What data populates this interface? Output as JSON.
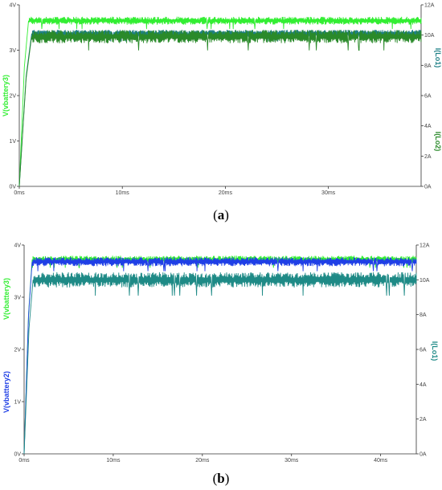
{
  "chart_data": [
    {
      "type": "line",
      "caption_letter": "a",
      "xlabel": "",
      "x_ticks": [
        "0ms",
        "10ms",
        "20ms",
        "30ms"
      ],
      "xlim": [
        0,
        39
      ],
      "left_axis": {
        "labels": [
          "V(vbattery3)"
        ],
        "label_colors": [
          "#33ee33"
        ],
        "ticks": [
          "0V",
          "1V",
          "2V",
          "3V",
          "4V"
        ],
        "ylim": [
          0,
          4
        ]
      },
      "right_axis": {
        "labels": [
          "I(Lo1)",
          "I(Lo2)"
        ],
        "label_colors": [
          "#1e7f86",
          "#2a8a2a"
        ],
        "ticks": [
          "0A",
          "2A",
          "4A",
          "6A",
          "8A",
          "10A",
          "12A"
        ],
        "ylim": [
          0,
          12
        ]
      },
      "series": [
        {
          "label": "V(vbattery3)",
          "axis": "left",
          "color": "#33ee33",
          "rise_end_ms": 0.9,
          "steady": 3.65,
          "ripple": 0.07
        },
        {
          "label": "I(Lo1)",
          "axis": "right",
          "color": "#1e7f86",
          "rise_end_ms": 1.2,
          "steady": 10.1,
          "ripple": 0.2
        },
        {
          "label": "I(Lo2)",
          "axis": "right",
          "color": "#2a8a2a",
          "rise_end_ms": 1.2,
          "steady": 9.9,
          "ripple": 0.35
        }
      ]
    },
    {
      "type": "line",
      "caption_letter": "b",
      "xlabel": "",
      "x_ticks": [
        "0ms",
        "10ms",
        "20ms",
        "30ms",
        "40ms"
      ],
      "xlim": [
        0,
        44
      ],
      "left_axis": {
        "labels": [
          "V(vbattery2)",
          "V(vbattery3)"
        ],
        "label_colors": [
          "#1f3fe6",
          "#33ee33"
        ],
        "ticks": [
          "0V",
          "1V",
          "2V",
          "3V",
          "4V"
        ],
        "ylim": [
          0,
          4
        ]
      },
      "right_axis": {
        "labels": [
          "I(Lo1)"
        ],
        "label_colors": [
          "#1e8a86"
        ],
        "ticks": [
          "0A",
          "2A",
          "4A",
          "6A",
          "8A",
          "10A",
          "12A"
        ],
        "ylim": [
          0,
          12
        ]
      },
      "series": [
        {
          "label": "V(vbattery3)",
          "axis": "left",
          "color": "#33ee33",
          "rise_end_ms": 0.9,
          "steady": 3.72,
          "ripple": 0.06
        },
        {
          "label": "V(vbattery2)",
          "axis": "left",
          "color": "#1f3fe6",
          "rise_end_ms": 0.9,
          "steady": 3.68,
          "ripple": 0.07
        },
        {
          "label": "I(Lo1)",
          "axis": "right",
          "color": "#1e8a86",
          "rise_end_ms": 1.0,
          "steady": 10.0,
          "ripple": 0.35
        }
      ]
    }
  ]
}
